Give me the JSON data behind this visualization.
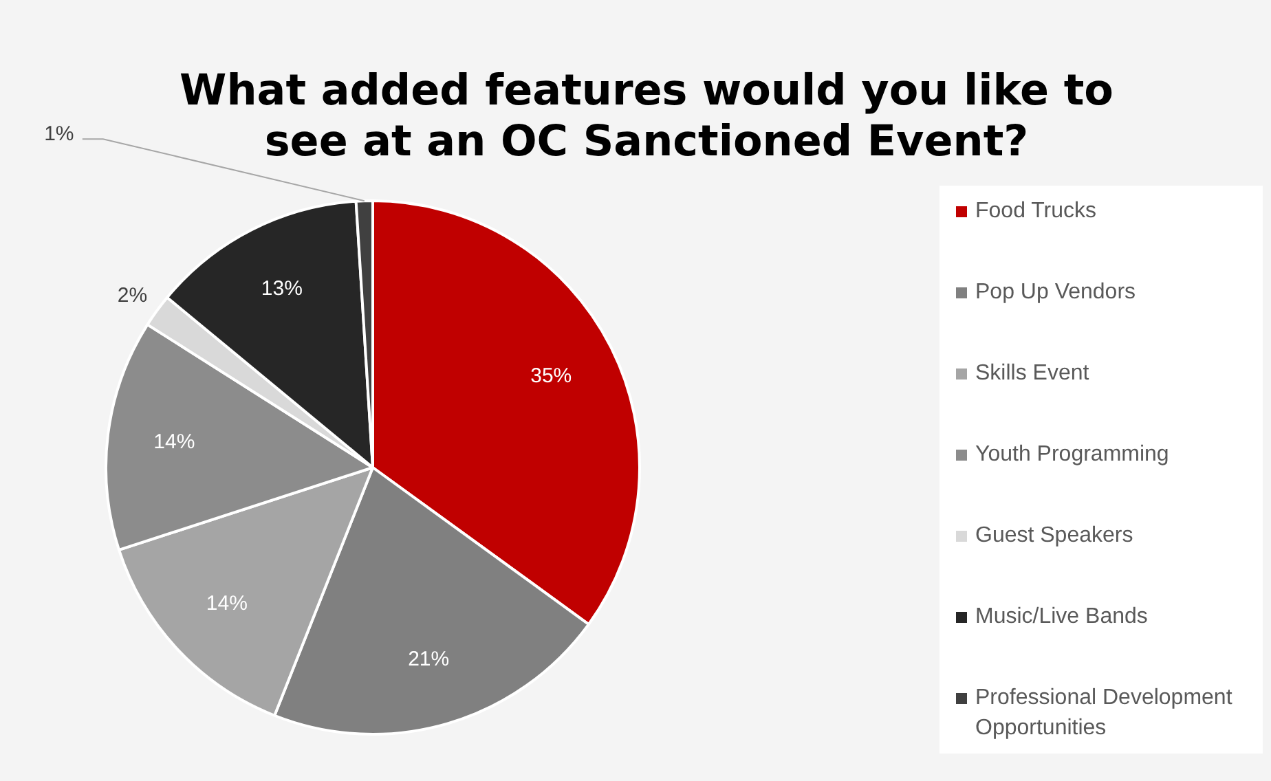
{
  "chart_data": {
    "type": "pie",
    "title": "What added features would you like to see at an OC Sanctioned Event?",
    "categories": [
      "Food Trucks",
      "Pop Up Vendors",
      "Skills Event",
      "Youth Programming",
      "Guest Speakers",
      "Music/Live Bands",
      "Professional Development Opportunities"
    ],
    "values": [
      35,
      21,
      14,
      14,
      2,
      13,
      1
    ],
    "colors": [
      "#c00000",
      "#808080",
      "#a5a5a5",
      "#8c8c8c",
      "#d9d9d9",
      "#262626",
      "#404040"
    ],
    "value_labels": [
      "35%",
      "21%",
      "14%",
      "14%",
      "2%",
      "13%",
      "1%"
    ],
    "legend": "right"
  }
}
